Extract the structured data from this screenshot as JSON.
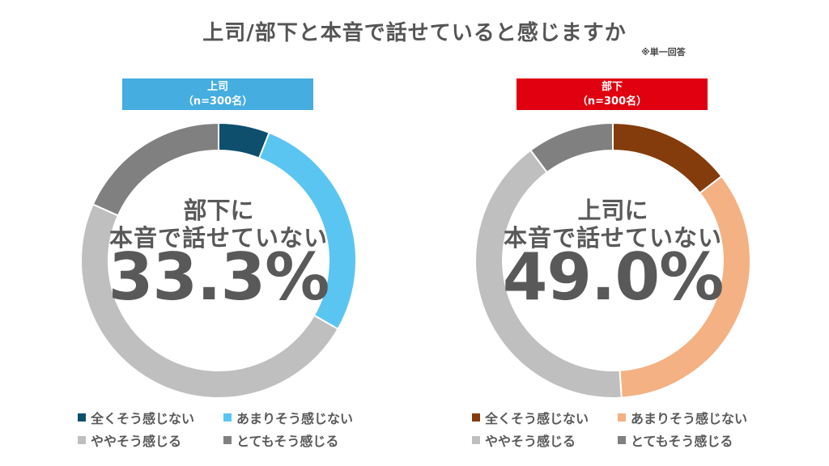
{
  "title": "上司/部下と本音で話せていると感じますか",
  "note": "※単一回答",
  "chart_data": [
    {
      "type": "pie",
      "variant": "donut",
      "panel_title": "上司",
      "panel_subtitle": "（n=300名）",
      "header_color": "#45ADE0",
      "center_line1": "部下に",
      "center_line2": "本音で話せていない",
      "center_value": "33.3%",
      "categories": [
        "全くそう感じない",
        "あまりそう感じない",
        "ややそう感じる",
        "とてもそう感じる"
      ],
      "values": [
        6.0,
        27.3,
        48.4,
        18.3
      ],
      "colors": [
        "#0E4F6E",
        "#5BC5F2",
        "#BFBFBF",
        "#808080"
      ],
      "legend_position": "bottom"
    },
    {
      "type": "pie",
      "variant": "donut",
      "panel_title": "部下",
      "panel_subtitle": "（n=300名）",
      "header_color": "#E0000F",
      "center_line1": "上司に",
      "center_line2": "本音で話せていない",
      "center_value": "49.0%",
      "categories": [
        "全くそう感じない",
        "あまりそう感じない",
        "ややそう感じる",
        "とてもそう感じる"
      ],
      "values": [
        14.5,
        34.5,
        40.8,
        10.2
      ],
      "colors": [
        "#843C0C",
        "#F4B183",
        "#BFBFBF",
        "#808080"
      ],
      "legend_position": "bottom"
    }
  ]
}
